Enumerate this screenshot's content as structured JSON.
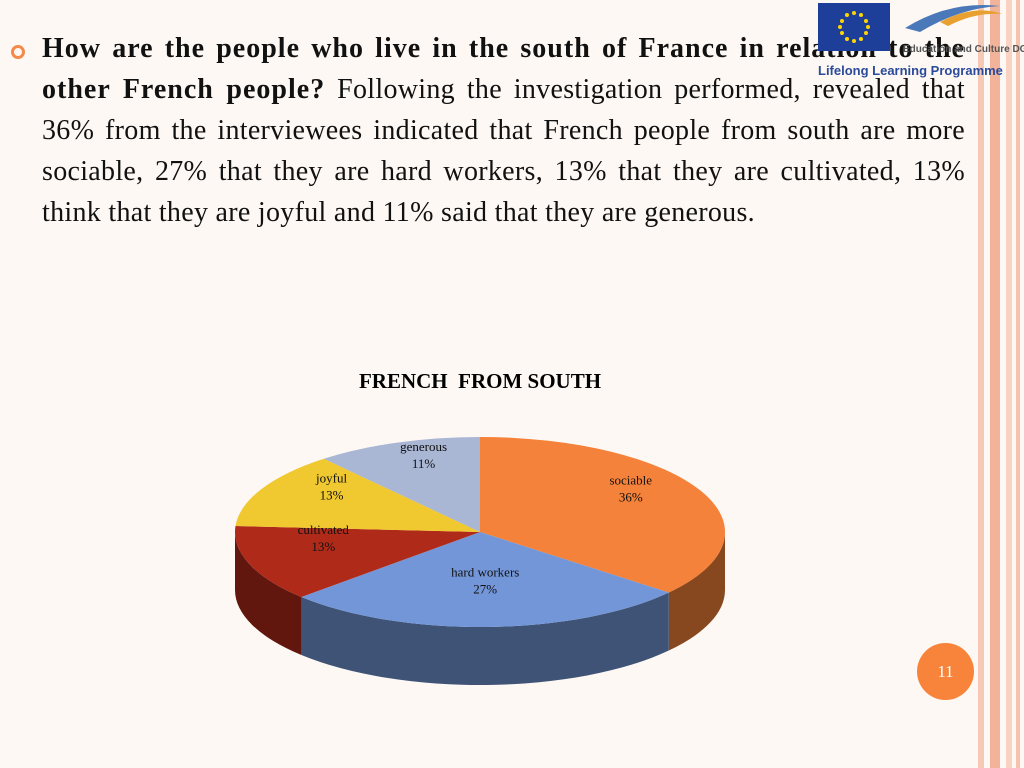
{
  "logo": {
    "line1": "Education and Culture DG",
    "line2": "Lifelong Learning Programme"
  },
  "text": {
    "question": "How are the people who live in the south of France in relation to the other French people?",
    "body": "Following the investigation performed, revealed that 36% from the interviewees indicated that French people from south are more sociable, 27% that they are hard workers, 13% that they are cultivated, 13% think that they are joyful and 11% said that they are generous."
  },
  "chart_data": {
    "type": "pie",
    "title": "FRENCH  FROM SOUTH",
    "categories": [
      "sociable",
      "hard workers",
      "cultivated",
      "joyful",
      "generous"
    ],
    "values": [
      36,
      27,
      13,
      13,
      11
    ],
    "value_labels": [
      "36%",
      "27%",
      "13%",
      "13%",
      "11%"
    ],
    "colors": [
      "#f5823a",
      "#7396d8",
      "#b02a1a",
      "#f0c830",
      "#a9b6d4"
    ]
  },
  "page_number": "11"
}
